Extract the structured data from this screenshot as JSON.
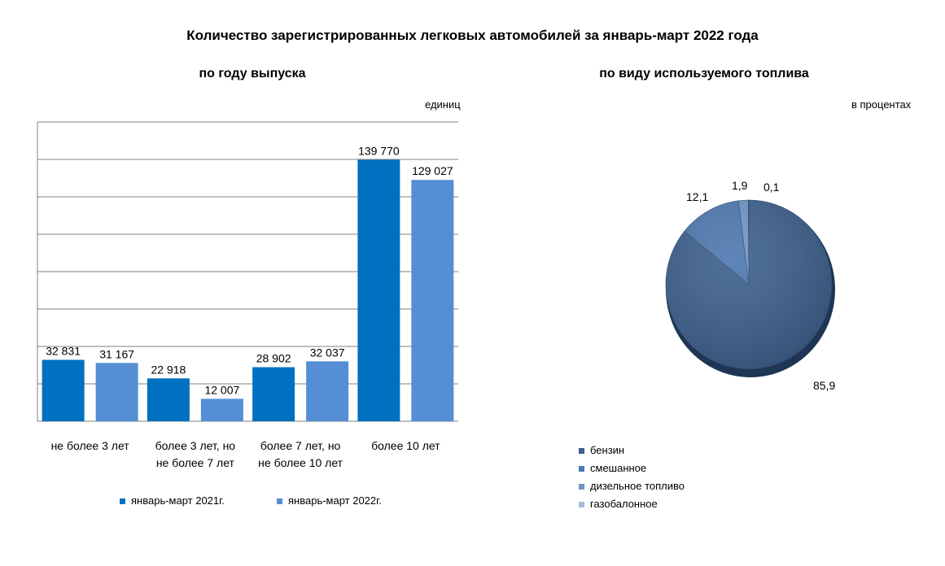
{
  "title": "Количество зарегистрированных  легковых  автомобилей за январь-март  2022 года",
  "chart_data": [
    {
      "type": "bar",
      "title": "по году выпуска",
      "unit_label": "единиц",
      "categories": [
        "не более 3 лет",
        "более 3 лет, но не более 7 лет",
        "более 7 лет, но не более 10 лет",
        "более 10 лет"
      ],
      "category_lines": [
        [
          "не более 3 лет"
        ],
        [
          "более 3 лет, но",
          "не более 7 лет"
        ],
        [
          "более 7 лет, но",
          "не более 10 лет"
        ],
        [
          "более 10 лет"
        ]
      ],
      "series": [
        {
          "name": "январь-март 2021г.",
          "values": [
            32831,
            22918,
            28902,
            139770
          ],
          "labels": [
            "32 831",
            "22 918",
            "28 902",
            "139 770"
          ],
          "color": "#0070c0"
        },
        {
          "name": "январь-март 2022г.",
          "values": [
            31167,
            12007,
            32037,
            129027
          ],
          "labels": [
            "31 167",
            "12 007",
            "32 037",
            "129 027"
          ],
          "color": "#558ed5"
        }
      ],
      "ylim": [
        0,
        160000
      ],
      "grid": true,
      "legend": "bottom"
    },
    {
      "type": "pie",
      "title": "по виду используемого  топлива",
      "unit_label": "в процентах",
      "categories": [
        "бензин",
        "смешанное",
        "дизельное топливо",
        "газобалонное"
      ],
      "values": [
        85.9,
        12.1,
        1.9,
        0.1
      ],
      "labels": [
        "85,9",
        "12,1",
        "1,9",
        "0,1"
      ],
      "colors": [
        "#3c5f8c",
        "#4d78b0",
        "#6f95c8",
        "#a5bcdc"
      ],
      "legend": "bottom-left"
    }
  ]
}
